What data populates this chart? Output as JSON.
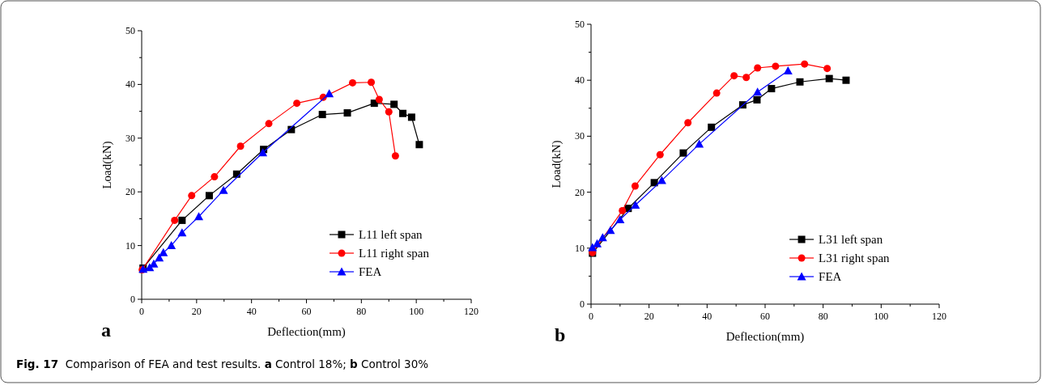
{
  "chart_data": [
    {
      "type": "line",
      "title": "a",
      "xlabel": "Deflection(mm)",
      "ylabel": "Load(kN)",
      "xlim": [
        0,
        120
      ],
      "ylim": [
        0,
        50
      ],
      "xticks": [
        0,
        {
          "value": 10,
          "label": null
        },
        20,
        {
          "value": 30,
          "label": null
        },
        40,
        {
          "value": 50,
          "label": null
        },
        60,
        {
          "value": 70,
          "label": null
        },
        80,
        {
          "value": 90,
          "label": null
        },
        100,
        {
          "value": 110,
          "label": null
        },
        120
      ],
      "yticks": [
        0,
        {
          "value": 5,
          "label": null
        },
        10,
        {
          "value": 15,
          "label": null
        },
        20,
        {
          "value": 25,
          "label": null
        },
        30,
        {
          "value": 35,
          "label": null
        },
        40,
        {
          "value": 45,
          "label": null
        },
        50
      ],
      "legend": "bottom right",
      "grid": false,
      "series": [
        {
          "name": "L11 left span",
          "color": "#000000",
          "marker": "square",
          "x": [
            0.5,
            14.7,
            24.6,
            34.6,
            44.4,
            54.5,
            65.8,
            74.9,
            84.7,
            91.9,
            95.1,
            98.3,
            101.1
          ],
          "values": [
            5.8,
            14.7,
            19.3,
            23.3,
            27.9,
            31.6,
            34.4,
            34.7,
            36.5,
            36.3,
            34.6,
            33.9,
            28.8
          ]
        },
        {
          "name": "L11 right span",
          "color": "#ff0000",
          "marker": "circle",
          "x": [
            0.2,
            12,
            18.2,
            26.5,
            36,
            46.3,
            56.5,
            66.1,
            76.8,
            83.6,
            86.5,
            90,
            92.4
          ],
          "values": [
            5.5,
            14.7,
            19.3,
            22.8,
            28.5,
            32.7,
            36.5,
            37.6,
            40.3,
            40.4,
            37.2,
            34.9,
            26.7
          ]
        },
        {
          "name": "FEA",
          "color": "#0000ff",
          "marker": "triangle",
          "x": [
            0.5,
            2.9,
            4.4,
            6.4,
            7.9,
            10.8,
            14.7,
            20.8,
            29.8,
            44.1,
            68.3
          ],
          "values": [
            5.6,
            5.9,
            6.6,
            7.7,
            8.7,
            10,
            12.4,
            15.4,
            20.3,
            27.3,
            38.3
          ]
        }
      ],
      "annotations": [
        "Fig. 17  Comparison of FEA and test results. a Control 18%; b Control 30%"
      ]
    },
    {
      "type": "line",
      "title": "b",
      "xlabel": "Deflection(mm)",
      "ylabel": "Load(kN)",
      "xlim": [
        0,
        120
      ],
      "ylim": [
        0,
        50
      ],
      "xticks": [
        0,
        {
          "value": 10,
          "label": null
        },
        20,
        {
          "value": 30,
          "label": null
        },
        40,
        {
          "value": 50,
          "label": null
        },
        60,
        {
          "value": 70,
          "label": null
        },
        80,
        {
          "value": 90,
          "label": null
        },
        100,
        {
          "value": 110,
          "label": null
        },
        120
      ],
      "yticks": [
        0,
        {
          "value": 5,
          "label": null
        },
        10,
        {
          "value": 15,
          "label": null
        },
        20,
        {
          "value": 25,
          "label": null
        },
        30,
        {
          "value": 35,
          "label": null
        },
        40,
        {
          "value": 45,
          "label": null
        },
        50
      ],
      "legend": "bottom right",
      "grid": false,
      "series": [
        {
          "name": "L31 left span",
          "color": "#000000",
          "marker": "square",
          "x": [
            0.5,
            12.8,
            21.8,
            31.8,
            41.5,
            52.3,
            57.2,
            62.2,
            72,
            82.1,
            87.9
          ],
          "values": [
            9.1,
            17.1,
            21.7,
            27,
            31.6,
            35.6,
            36.5,
            38.5,
            39.7,
            40.3,
            40
          ]
        },
        {
          "name": "L31 right span",
          "color": "#ff0000",
          "marker": "circle",
          "x": [
            0.5,
            10.8,
            15.2,
            23.8,
            33.4,
            43.3,
            49.3,
            53.5,
            57.4,
            63.6,
            73.6,
            81.4
          ],
          "values": [
            9.2,
            16.7,
            21.1,
            26.7,
            32.4,
            37.7,
            40.8,
            40.5,
            42.2,
            42.5,
            42.9,
            42.1
          ]
        },
        {
          "name": "FEA",
          "color": "#0000ff",
          "marker": "triangle",
          "x": [
            0.5,
            2.1,
            4,
            6.7,
            10,
            15.3,
            24.4,
            37.3,
            57.4,
            67.9
          ],
          "values": [
            10.1,
            10.8,
            11.9,
            13.2,
            15.1,
            17.7,
            22.1,
            28.6,
            37.9,
            41.7
          ]
        }
      ]
    }
  ]
}
